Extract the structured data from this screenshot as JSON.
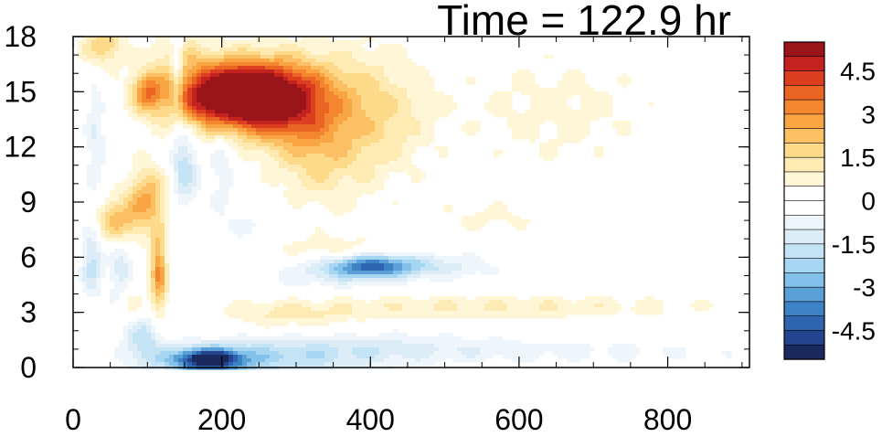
{
  "chart_data": {
    "type": "heatmap",
    "title": "Time = 122.9 hr",
    "xlim": [
      0,
      910
    ],
    "ylim": [
      0,
      18
    ],
    "x_ticks": [
      0,
      200,
      400,
      600,
      800
    ],
    "y_ticks": [
      0,
      3,
      6,
      9,
      12,
      15,
      18
    ],
    "x_minor_step": 50,
    "y_minor_step": 1,
    "colorbar": {
      "levels": [
        -5.5,
        -5,
        -4.5,
        -4,
        -3.5,
        -3,
        -2.5,
        -2,
        -1.5,
        -1,
        -0.5,
        0,
        0.5,
        1,
        1.5,
        2,
        2.5,
        3,
        3.5,
        4,
        4.5,
        5,
        5.5
      ],
      "labels": [
        "4.5",
        "3",
        "1.5",
        "0",
        "-1.5",
        "-3",
        "-4.5"
      ],
      "label_values": [
        4.5,
        3,
        1.5,
        0,
        -1.5,
        -3,
        -4.5
      ],
      "colors": [
        "#1a2a5e",
        "#23448f",
        "#2f64b0",
        "#3d82c4",
        "#5a9fd6",
        "#84c1ea",
        "#a7d6f2",
        "#c4e3f5",
        "#dcedf8",
        "#eef6fc",
        "#ffffff",
        "#ffffff",
        "#fff6d8",
        "#feebb4",
        "#fdd98a",
        "#fcc064",
        "#f9a544",
        "#f4862f",
        "#ea6424",
        "#dc3f20",
        "#c4221e",
        "#9a1519"
      ]
    },
    "features": [
      {
        "x": 220,
        "y": 14.8,
        "sx": 60,
        "sy": 1.3,
        "amp": 7.5
      },
      {
        "x": 300,
        "y": 14.2,
        "sx": 45,
        "sy": 1.8,
        "amp": 2.4
      },
      {
        "x": 400,
        "y": 13.8,
        "sx": 55,
        "sy": 2.5,
        "amp": 1.6
      },
      {
        "x": 330,
        "y": 11.0,
        "sx": 40,
        "sy": 2.0,
        "amp": 1.0
      },
      {
        "x": 650,
        "y": 14.0,
        "sx": 90,
        "sy": 2.2,
        "amp": 0.7
      },
      {
        "x": 100,
        "y": 15.0,
        "sx": 15,
        "sy": 0.8,
        "amp": 2.6
      },
      {
        "x": 40,
        "y": 17.5,
        "sx": 20,
        "sy": 0.8,
        "amp": 2.0
      },
      {
        "x": 140,
        "y": 17.3,
        "sx": 25,
        "sy": 0.8,
        "amp": 1.0
      },
      {
        "x": 60,
        "y": 8.0,
        "sx": 22,
        "sy": 0.9,
        "amp": 2.3
      },
      {
        "x": 100,
        "y": 9.3,
        "sx": 18,
        "sy": 1.2,
        "amp": 2.4
      },
      {
        "x": 115,
        "y": 5.2,
        "sx": 8,
        "sy": 1.6,
        "amp": 3.0
      },
      {
        "x": 75,
        "y": 3.5,
        "sx": 12,
        "sy": 0.8,
        "amp": 1.2
      },
      {
        "x": 560,
        "y": 8.2,
        "sx": 60,
        "sy": 0.6,
        "amp": 0.6
      },
      {
        "x": 330,
        "y": 6.5,
        "sx": 80,
        "sy": 0.5,
        "amp": 0.8
      },
      {
        "x": 290,
        "y": 2.8,
        "sx": 60,
        "sy": 0.5,
        "amp": 0.9
      },
      {
        "x": 550,
        "y": 3.3,
        "sx": 220,
        "sy": 0.5,
        "amp": 1.0
      },
      {
        "x": 140,
        "y": 16.5,
        "sx": 6,
        "sy": 2.0,
        "amp": -1.6
      },
      {
        "x": 150,
        "y": 11.0,
        "sx": 12,
        "sy": 1.6,
        "amp": -1.9
      },
      {
        "x": 30,
        "y": 12.5,
        "sx": 10,
        "sy": 2.5,
        "amp": -1.0
      },
      {
        "x": 25,
        "y": 5.8,
        "sx": 10,
        "sy": 1.4,
        "amp": -1.7
      },
      {
        "x": 65,
        "y": 5.0,
        "sx": 12,
        "sy": 1.5,
        "amp": -1.4
      },
      {
        "x": 95,
        "y": 1.5,
        "sx": 18,
        "sy": 1.0,
        "amp": -1.8
      },
      {
        "x": 200,
        "y": 11.5,
        "sx": 15,
        "sy": 2.0,
        "amp": -0.9
      },
      {
        "x": 400,
        "y": 5.5,
        "sx": 40,
        "sy": 0.45,
        "amp": -3.4
      },
      {
        "x": 470,
        "y": 5.5,
        "sx": 70,
        "sy": 0.5,
        "amp": -1.3
      },
      {
        "x": 180,
        "y": 0.4,
        "sx": 35,
        "sy": 0.45,
        "amp": -5.2
      },
      {
        "x": 260,
        "y": 0.5,
        "sx": 90,
        "sy": 0.7,
        "amp": -1.7
      },
      {
        "x": 420,
        "y": 1.0,
        "sx": 110,
        "sy": 0.6,
        "amp": -1.0
      },
      {
        "x": 700,
        "y": 0.9,
        "sx": 160,
        "sy": 0.5,
        "amp": -0.6
      },
      {
        "x": 330,
        "y": 5.0,
        "sx": 50,
        "sy": 0.6,
        "amp": -0.8
      },
      {
        "x": 250,
        "y": 7.5,
        "sx": 40,
        "sy": 1.0,
        "amp": -0.6
      }
    ]
  }
}
